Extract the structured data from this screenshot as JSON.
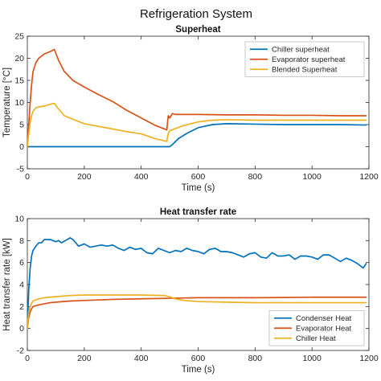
{
  "figure_title": "Refrigeration System",
  "colors": {
    "blue": "#0072BD",
    "orange": "#D95319",
    "yellow": "#EDB120"
  },
  "chart_data": [
    {
      "type": "line",
      "title": "Superheat",
      "xlabel": "Time (s)",
      "ylabel": "Temperature [°C]",
      "xlim": [
        0,
        1200
      ],
      "ylim": [
        -5,
        25
      ],
      "xticks": [
        0,
        200,
        400,
        600,
        800,
        1000,
        1200
      ],
      "yticks": [
        -5,
        0,
        5,
        10,
        15,
        20,
        25
      ],
      "legend_position": "top-right",
      "series": [
        {
          "name": "Chiller superheat",
          "color": "#0072BD",
          "x": [
            0,
            100,
            200,
            300,
            400,
            480,
            500,
            510,
            530,
            560,
            600,
            650,
            700,
            800,
            900,
            1000,
            1100,
            1190
          ],
          "y": [
            0,
            0,
            0,
            0,
            0,
            0,
            0,
            0.5,
            1.8,
            3.0,
            4.3,
            5.0,
            5.2,
            5.1,
            5.0,
            5.0,
            5.0,
            4.9
          ]
        },
        {
          "name": "Evaporator superheat",
          "color": "#D95319",
          "x": [
            0,
            5,
            10,
            15,
            20,
            30,
            40,
            60,
            80,
            95,
            110,
            130,
            160,
            200,
            250,
            300,
            350,
            400,
            450,
            490,
            495,
            500,
            510,
            520,
            540,
            600,
            700,
            800,
            900,
            1000,
            1100,
            1190
          ],
          "y": [
            0,
            5,
            10,
            14,
            17,
            19,
            20,
            21,
            21.5,
            22,
            19.5,
            17,
            15,
            13.5,
            11.8,
            10.2,
            8.2,
            6.5,
            4.8,
            3.8,
            7.0,
            6.5,
            7.5,
            7.3,
            7.3,
            7.3,
            7.2,
            7.2,
            7.1,
            7.1,
            7.0,
            7.0
          ]
        },
        {
          "name": "Blended Superheat",
          "color": "#EDB120",
          "x": [
            0,
            5,
            10,
            15,
            20,
            30,
            40,
            60,
            80,
            95,
            110,
            130,
            160,
            200,
            250,
            300,
            350,
            400,
            450,
            490,
            495,
            500,
            520,
            550,
            600,
            650,
            700,
            800,
            900,
            1000,
            1100,
            1190
          ],
          "y": [
            0,
            3,
            5.5,
            7,
            8,
            8.8,
            9,
            9.2,
            9.6,
            9.8,
            8.5,
            7,
            6.2,
            5.2,
            4.6,
            4.0,
            3.4,
            2.9,
            1.8,
            1.2,
            3.0,
            3.6,
            4.1,
            4.8,
            5.6,
            6.0,
            6.1,
            6.0,
            6.0,
            6.0,
            6.0,
            6.0
          ]
        }
      ]
    },
    {
      "type": "line",
      "title": "Heat transfer rate",
      "xlabel": "Time (s)",
      "ylabel": "Heat transfer rate [kW]",
      "xlim": [
        0,
        1200
      ],
      "ylim": [
        -2,
        10
      ],
      "xticks": [
        0,
        200,
        400,
        600,
        800,
        1000,
        1200
      ],
      "yticks": [
        -2,
        0,
        2,
        4,
        6,
        8,
        10
      ],
      "legend_position": "bottom-right",
      "series": [
        {
          "name": "Condenser Heat",
          "color": "#0072BD",
          "x": [
            0,
            5,
            10,
            15,
            20,
            30,
            40,
            50,
            60,
            70,
            80,
            100,
            110,
            120,
            140,
            150,
            160,
            180,
            200,
            220,
            240,
            260,
            280,
            300,
            320,
            340,
            360,
            380,
            400,
            420,
            440,
            460,
            480,
            500,
            520,
            540,
            560,
            580,
            600,
            620,
            640,
            660,
            680,
            700,
            720,
            740,
            760,
            780,
            800,
            820,
            840,
            860,
            880,
            900,
            920,
            940,
            960,
            980,
            1000,
            1020,
            1040,
            1060,
            1080,
            1100,
            1120,
            1140,
            1160,
            1180,
            1190
          ],
          "y": [
            0,
            3.5,
            5.5,
            6.6,
            7.1,
            7.5,
            7.8,
            7.8,
            8.1,
            8.1,
            8.1,
            7.9,
            8.0,
            7.8,
            8.1,
            8.25,
            8.1,
            7.5,
            7.7,
            7.4,
            7.5,
            7.6,
            7.5,
            7.6,
            7.3,
            7.1,
            7.4,
            7.2,
            7.3,
            6.9,
            6.8,
            7.3,
            7.1,
            6.9,
            7.1,
            7.0,
            7.3,
            7.1,
            7.0,
            6.8,
            7.2,
            7.3,
            7.0,
            7.0,
            6.9,
            6.7,
            6.5,
            6.8,
            6.9,
            6.5,
            6.4,
            6.9,
            6.6,
            6.6,
            6.7,
            6.3,
            6.6,
            6.6,
            6.5,
            6.3,
            6.7,
            6.7,
            6.4,
            6.1,
            6.4,
            6.2,
            5.9,
            5.5,
            5.9
          ]
        },
        {
          "name": "Evaporator Heat",
          "color": "#D95319",
          "x": [
            0,
            5,
            10,
            15,
            20,
            40,
            60,
            80,
            100,
            150,
            200,
            300,
            400,
            500,
            600,
            700,
            800,
            900,
            1000,
            1100,
            1190
          ],
          "y": [
            0,
            1.0,
            1.5,
            1.8,
            2.0,
            2.15,
            2.25,
            2.35,
            2.4,
            2.5,
            2.55,
            2.65,
            2.7,
            2.75,
            2.8,
            2.8,
            2.8,
            2.82,
            2.85,
            2.85,
            2.85
          ]
        },
        {
          "name": "Chiller Heat",
          "color": "#EDB120",
          "x": [
            0,
            5,
            10,
            15,
            20,
            40,
            60,
            80,
            100,
            150,
            200,
            250,
            300,
            400,
            480,
            500,
            520,
            550,
            600,
            700,
            800,
            900,
            1000,
            1100,
            1190
          ],
          "y": [
            0,
            1.5,
            2.0,
            2.3,
            2.5,
            2.7,
            2.8,
            2.85,
            2.9,
            3.0,
            3.05,
            3.05,
            3.05,
            3.05,
            3.0,
            2.9,
            2.7,
            2.55,
            2.45,
            2.4,
            2.35,
            2.35,
            2.35,
            2.35,
            2.35
          ]
        }
      ]
    }
  ]
}
